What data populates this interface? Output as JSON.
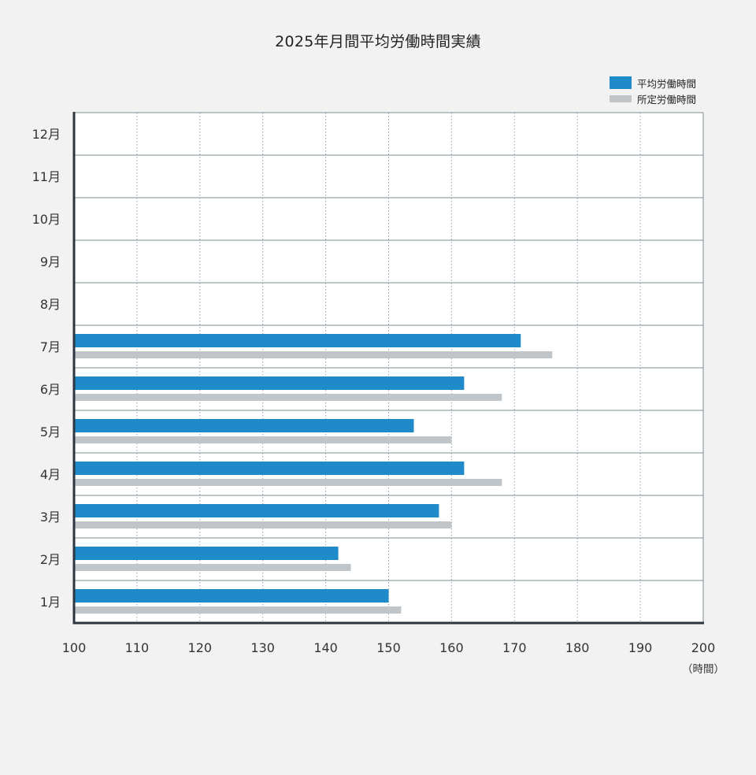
{
  "chart_data": {
    "type": "bar",
    "orientation": "horizontal",
    "title": "2025年月間平均労働時間実績",
    "categories": [
      "1月",
      "2月",
      "3月",
      "4月",
      "5月",
      "6月",
      "7月",
      "8月",
      "9月",
      "10月",
      "11月",
      "12月"
    ],
    "series": [
      {
        "name": "平均労働時間",
        "color": "#1f8ac9",
        "values": [
          150,
          142,
          158,
          162,
          154,
          162,
          171,
          null,
          null,
          null,
          null,
          null
        ]
      },
      {
        "name": "所定労働時間",
        "color": "#bfc5c8",
        "values": [
          152,
          144,
          160,
          168,
          160,
          168,
          176,
          null,
          null,
          null,
          null,
          null
        ]
      }
    ],
    "xlim": [
      100,
      200
    ],
    "xticks": [
      100,
      110,
      120,
      130,
      140,
      150,
      160,
      170,
      180,
      190,
      200
    ],
    "x_unit": "（時間）",
    "legend_position": "top-right",
    "grid": {
      "vertical": "dotted",
      "horizontal": "solid"
    }
  }
}
